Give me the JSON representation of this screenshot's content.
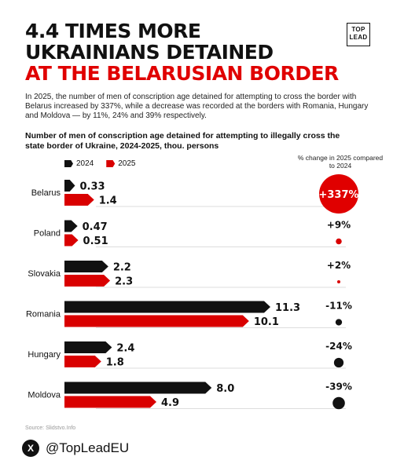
{
  "headline": {
    "line1": "4.4 TIMES MORE",
    "line2": "UKRAINIANS DETAINED",
    "line3": "AT THE BELARUSIAN BORDER"
  },
  "logo": {
    "line1": "TOP",
    "line2": "LEAD"
  },
  "lead_text": "In 2025, the number of men of conscription age detained for attempting to cross the border with Belarus increased by 337%, while a decrease was recorded at the borders with Romania, Hungary and Moldova — by 11%, 24% and 39% respectively.",
  "legend": {
    "a": "2024",
    "b": "2025"
  },
  "pct_note": "% change in 2025 compared to 2024",
  "source": "Source: Slidstvo.Info",
  "footer": {
    "x_icon": "X",
    "handle": "@TopLeadEU"
  },
  "colors": {
    "y2024": "#111111",
    "y2025": "#d90000",
    "grid": "#dddddd",
    "badge": "#e00000"
  },
  "chart_data": {
    "type": "bar",
    "title": "Number of men of conscription age detained for attempting to illegally cross the state border of Ukraine, 2024-2025, thou. persons",
    "categories": [
      "Belarus",
      "Poland",
      "Slovakia",
      "Romania",
      "Hungary",
      "Moldova"
    ],
    "series": [
      {
        "name": "2024",
        "values": [
          0.33,
          0.47,
          2.2,
          11.3,
          2.4,
          8.0
        ],
        "labels": [
          "0.33",
          "0.47",
          "2.2",
          "11.3",
          "2.4",
          "8.0"
        ]
      },
      {
        "name": "2025",
        "values": [
          1.4,
          0.51,
          2.3,
          10.1,
          1.8,
          4.9
        ],
        "labels": [
          "1.4",
          "0.51",
          "2.3",
          "10.1",
          "1.8",
          "4.9"
        ]
      }
    ],
    "pct_change": [
      337,
      9,
      2,
      -11,
      -24,
      -39
    ],
    "pct_labels": [
      "+337%",
      "+9%",
      "+2%",
      "-11%",
      "-24%",
      "-39%"
    ],
    "xlim": [
      0,
      11.3
    ],
    "grid": false,
    "legend": "top-left"
  }
}
